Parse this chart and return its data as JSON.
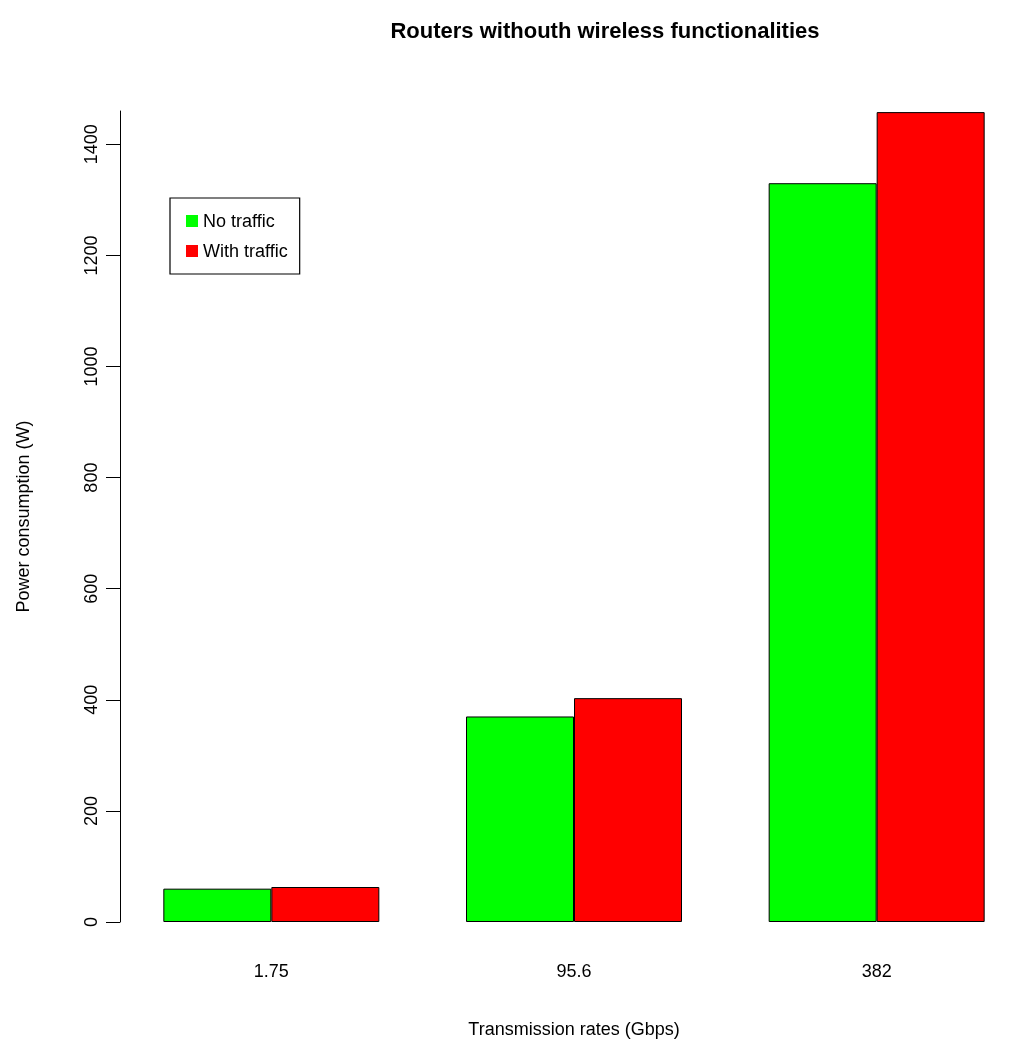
{
  "chart_data": {
    "type": "bar",
    "title": "Routers withouth wireless functionalities",
    "xlabel": "Transmission rates (Gbps)",
    "ylabel": "Power consumption (W)",
    "categories": [
      "1.75",
      "95.6",
      "382"
    ],
    "series": [
      {
        "name": "No traffic",
        "color": "#00ff00",
        "values": [
          60,
          370,
          1330
        ]
      },
      {
        "name": "With traffic",
        "color": "#ff0000",
        "values": [
          63,
          403,
          1458
        ]
      }
    ],
    "ylim": [
      0,
      1460
    ],
    "yticks": [
      0,
      200,
      400,
      600,
      800,
      1000,
      1200,
      1400
    ],
    "grid": false,
    "legend": "top left"
  }
}
